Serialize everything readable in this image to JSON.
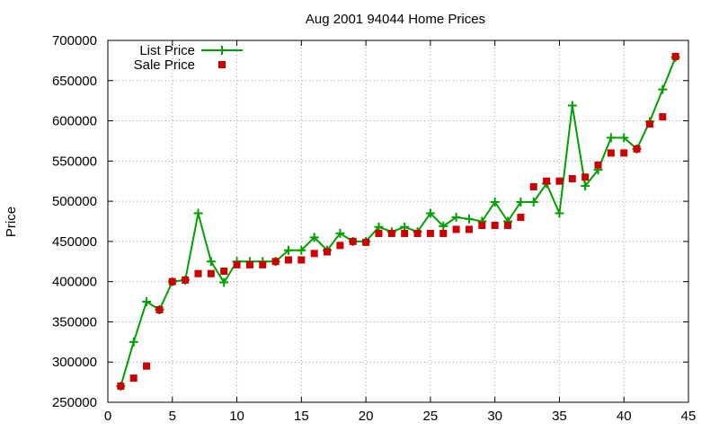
{
  "chart_data": {
    "type": "line",
    "title": "Aug 2001 94044 Home Prices",
    "xlabel": "",
    "ylabel": "Price",
    "xlim": [
      0,
      45
    ],
    "ylim": [
      250000,
      700000
    ],
    "xticks": [
      0,
      5,
      10,
      15,
      20,
      25,
      30,
      35,
      40,
      45
    ],
    "yticks": [
      250000,
      300000,
      350000,
      400000,
      450000,
      500000,
      550000,
      600000,
      650000,
      700000
    ],
    "grid": true,
    "legend_position": "top-left",
    "series": [
      {
        "name": "List Price",
        "style": "lines+points",
        "marker": "plus",
        "color": "#00a000",
        "x": [
          1,
          2,
          3,
          4,
          5,
          6,
          7,
          8,
          9,
          10,
          11,
          12,
          13,
          14,
          15,
          16,
          17,
          18,
          19,
          20,
          21,
          22,
          23,
          24,
          25,
          26,
          27,
          28,
          29,
          30,
          31,
          32,
          33,
          34,
          35,
          36,
          37,
          38,
          39,
          40,
          41,
          42,
          43,
          44
        ],
        "y": [
          270000,
          325000,
          375000,
          365000,
          400000,
          402000,
          485000,
          425000,
          399000,
          425000,
          425000,
          425000,
          425000,
          439000,
          439000,
          455000,
          439000,
          460000,
          450000,
          450000,
          468000,
          462000,
          468000,
          462000,
          485000,
          469000,
          480000,
          478000,
          475000,
          499000,
          475000,
          499000,
          499000,
          522000,
          485000,
          619000,
          519000,
          539000,
          579000,
          579000,
          565000,
          599000,
          639000,
          679000
        ]
      },
      {
        "name": "Sale Price",
        "style": "points",
        "marker": "square",
        "color": "#cc0000",
        "x": [
          1,
          2,
          3,
          4,
          5,
          6,
          7,
          8,
          9,
          10,
          11,
          12,
          13,
          14,
          15,
          16,
          17,
          18,
          19,
          20,
          21,
          22,
          23,
          24,
          25,
          26,
          27,
          28,
          29,
          30,
          31,
          32,
          33,
          34,
          35,
          36,
          37,
          38,
          39,
          40,
          41,
          42,
          43,
          44
        ],
        "y": [
          270000,
          280000,
          295000,
          365000,
          400000,
          402000,
          410000,
          410000,
          413000,
          421000,
          421000,
          421000,
          425000,
          427000,
          427000,
          435000,
          437000,
          445000,
          450000,
          449000,
          460000,
          460000,
          460000,
          460000,
          460000,
          460000,
          465000,
          465000,
          470000,
          470000,
          470000,
          480000,
          518000,
          525000,
          525000,
          528000,
          530000,
          545000,
          560000,
          560000,
          565000,
          596000,
          605000,
          680000
        ]
      }
    ]
  }
}
